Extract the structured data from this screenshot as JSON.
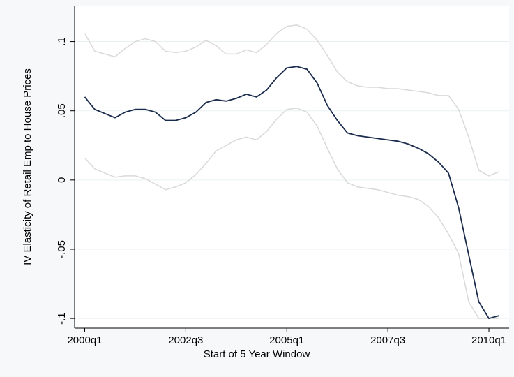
{
  "chart_data": {
    "type": "line",
    "y_label": "IV Elasticity of Retail Emp to House Prices",
    "x_label": "Start of 5 Year Window",
    "categories": [
      "2000q1",
      null,
      null,
      null,
      null,
      null,
      null,
      null,
      null,
      null,
      "2002q3",
      null,
      null,
      null,
      null,
      null,
      null,
      null,
      null,
      null,
      "2005q1",
      null,
      null,
      null,
      null,
      null,
      null,
      null,
      null,
      null,
      "2007q3",
      null,
      null,
      null,
      null,
      null,
      null,
      null,
      null,
      null,
      "2010q1",
      null
    ],
    "series": [
      {
        "color": "#d9d9d9",
        "values": [
          0.106,
          0.093,
          0.091,
          0.089,
          0.095,
          0.1,
          0.102,
          0.1,
          0.093,
          0.092,
          0.093,
          0.096,
          0.101,
          0.097,
          0.091,
          0.091,
          0.094,
          0.092,
          0.098,
          0.106,
          0.111,
          0.112,
          0.109,
          0.101,
          0.09,
          0.078,
          0.071,
          0.068,
          0.067,
          0.067,
          0.066,
          0.066,
          0.065,
          0.064,
          0.063,
          0.061,
          0.061,
          0.051,
          0.031,
          0.007,
          0.003,
          0.006
        ]
      },
      {
        "color": "#d9d9d9",
        "values": [
          0.016,
          0.008,
          0.005,
          0.002,
          0.003,
          0.003,
          0.001,
          -0.003,
          -0.007,
          -0.005,
          -0.002,
          0.004,
          0.012,
          0.021,
          0.025,
          0.029,
          0.031,
          0.029,
          0.035,
          0.044,
          0.051,
          0.052,
          0.049,
          0.039,
          0.023,
          0.008,
          -0.002,
          -0.005,
          -0.006,
          -0.007,
          -0.009,
          -0.011,
          -0.012,
          -0.014,
          -0.019,
          -0.027,
          -0.039,
          -0.053,
          -0.088,
          -0.1,
          -0.1,
          -0.1
        ]
      },
      {
        "color": "#1a2b4c",
        "values": [
          0.06,
          0.051,
          0.048,
          0.045,
          0.049,
          0.051,
          0.051,
          0.049,
          0.043,
          0.043,
          0.045,
          0.049,
          0.056,
          0.058,
          0.057,
          0.059,
          0.062,
          0.06,
          0.065,
          0.074,
          0.081,
          0.082,
          0.08,
          0.07,
          0.054,
          0.043,
          0.034,
          0.032,
          0.031,
          0.03,
          0.029,
          0.028,
          0.026,
          0.023,
          0.019,
          0.013,
          0.005,
          -0.02,
          -0.054,
          -0.088,
          -0.1,
          -0.098
        ]
      }
    ],
    "ylim": [
      -0.107,
      0.126
    ],
    "yticks": [
      {
        "value": -0.1,
        "label": "-.1"
      },
      {
        "value": -0.05,
        "label": "-.05"
      },
      0,
      {
        "value": 0.05,
        "label": ".05"
      },
      {
        "value": 0.1,
        "label": ".1"
      }
    ],
    "grid": true
  }
}
